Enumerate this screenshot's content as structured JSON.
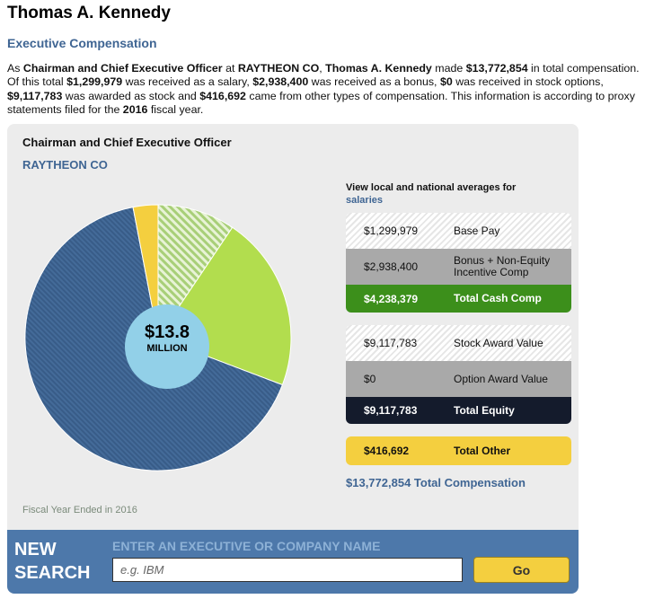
{
  "page": {
    "title": "Thomas A. Kennedy",
    "section_title": "Executive Compensation"
  },
  "intro": {
    "t1": "As ",
    "role": "Chairman and Chief Executive Officer",
    "t2": " at ",
    "company": "RAYTHEON CO",
    "t3": ", ",
    "name": "Thomas A. Kennedy",
    "t4": " made ",
    "total": "$13,772,854",
    "t5": " in total compensation. Of this total ",
    "salary": "$1,299,979",
    "t6": " was received as a salary, ",
    "bonus": "$2,938,400",
    "t7": " was received as a bonus, ",
    "options": "$0",
    "t8": " was received in stock options, ",
    "stock": "$9,117,783",
    "t9": " was awarded as stock and ",
    "other": "$416,692",
    "t10": " came from other types of compensation. This information is according to proxy statements filed for the ",
    "year": "2016",
    "t11": " fiscal year."
  },
  "panel": {
    "role": "Chairman and Chief Executive Officer",
    "company": "RAYTHEON CO",
    "fiscal_year_note": "Fiscal Year Ended in 2016",
    "center_value": "$13.8",
    "center_unit": "MILLION",
    "averages_text": "View local and national averages for",
    "averages_link": "salaries"
  },
  "cash_table": {
    "rows": [
      {
        "amount": "$1,299,979",
        "label": "Base Pay"
      },
      {
        "amount": "$2,938,400",
        "label": "Bonus + Non-Equity Incentive Comp"
      }
    ],
    "total": {
      "amount": "$4,238,379",
      "label": "Total Cash Comp"
    }
  },
  "equity_table": {
    "rows": [
      {
        "amount": "$9,117,783",
        "label": "Stock Award Value"
      },
      {
        "amount": "$0",
        "label": "Option Award Value"
      }
    ],
    "total": {
      "amount": "$9,117,783",
      "label": "Total Equity"
    }
  },
  "other_table": {
    "total": {
      "amount": "$416,692",
      "label": "Total Other"
    }
  },
  "total_compensation": "$13,772,854 Total Compensation",
  "search": {
    "title_line1": "NEW",
    "title_line2": "SEARCH",
    "label": "ENTER AN EXECUTIVE OR COMPANY NAME",
    "placeholder": "e.g. IBM",
    "value": "",
    "button_label": "Go"
  },
  "chart_data": {
    "type": "pie",
    "slices": [
      {
        "label": "Base Pay",
        "value": 1299979,
        "color": "#a8cf78",
        "pattern": "striped"
      },
      {
        "label": "Bonus + Non-Equity Incentive Comp",
        "value": 2938400,
        "color": "#b2dd4e",
        "pattern": "solid"
      },
      {
        "label": "Stock Award Value",
        "value": 9117783,
        "color": "#3f6593",
        "pattern": "striped"
      },
      {
        "label": "Option Award Value",
        "value": 0,
        "color": "#a9a9a9",
        "pattern": "solid"
      },
      {
        "label": "Total Other",
        "value": 416692,
        "color": "#f4cf3f",
        "pattern": "solid"
      }
    ],
    "center_label": "$13.8 MILLION"
  },
  "colors": {
    "brand_blue": "#3f6593",
    "cash_green": "#3c8f1b",
    "equity_navy": "#141b2c",
    "other_yellow": "#f4cf3f",
    "center_circle": "#92d0e8"
  }
}
